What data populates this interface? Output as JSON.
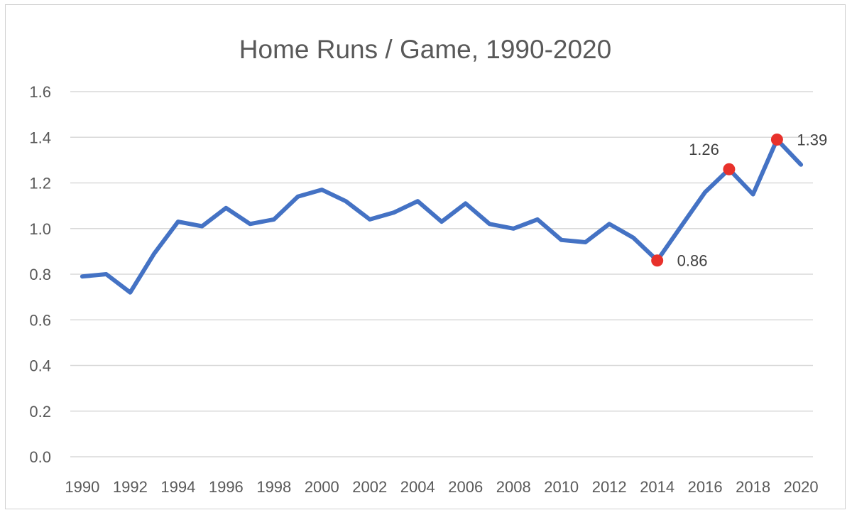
{
  "chart_data": {
    "type": "line",
    "title": "Home Runs / Game, 1990-2020",
    "xlabel": "",
    "ylabel": "",
    "ylim": [
      0,
      1.6
    ],
    "xlim": [
      1990,
      2020
    ],
    "y_ticks": [
      "0.0",
      "0.2",
      "0.4",
      "0.6",
      "0.8",
      "1.0",
      "1.2",
      "1.4",
      "1.6"
    ],
    "x_ticks": [
      "1990",
      "1992",
      "1994",
      "1996",
      "1998",
      "2000",
      "2002",
      "2004",
      "2006",
      "2008",
      "2010",
      "2012",
      "2014",
      "2016",
      "2018",
      "2020"
    ],
    "grid": true,
    "legend": "none",
    "series": [
      {
        "color": "#4472C4",
        "x": [
          1990,
          1991,
          1992,
          1993,
          1994,
          1995,
          1996,
          1997,
          1998,
          1999,
          2000,
          2001,
          2002,
          2003,
          2004,
          2005,
          2006,
          2007,
          2008,
          2009,
          2010,
          2011,
          2012,
          2013,
          2014,
          2015,
          2016,
          2017,
          2018,
          2019,
          2020
        ],
        "values": [
          0.79,
          0.8,
          0.72,
          0.89,
          1.03,
          1.01,
          1.09,
          1.02,
          1.04,
          1.14,
          1.17,
          1.12,
          1.04,
          1.07,
          1.12,
          1.03,
          1.11,
          1.02,
          1.0,
          1.04,
          0.95,
          0.94,
          1.02,
          0.96,
          0.86,
          1.01,
          1.16,
          1.26,
          1.15,
          1.39,
          1.28
        ]
      }
    ],
    "annotations": [
      {
        "x": 2014,
        "y": 0.86,
        "label": "0.86",
        "position": "right",
        "color": "#E8312B"
      },
      {
        "x": 2017,
        "y": 1.26,
        "label": "1.26",
        "position": "above-left",
        "color": "#E8312B"
      },
      {
        "x": 2019,
        "y": 1.39,
        "label": "1.39",
        "position": "right",
        "color": "#E8312B"
      }
    ]
  }
}
